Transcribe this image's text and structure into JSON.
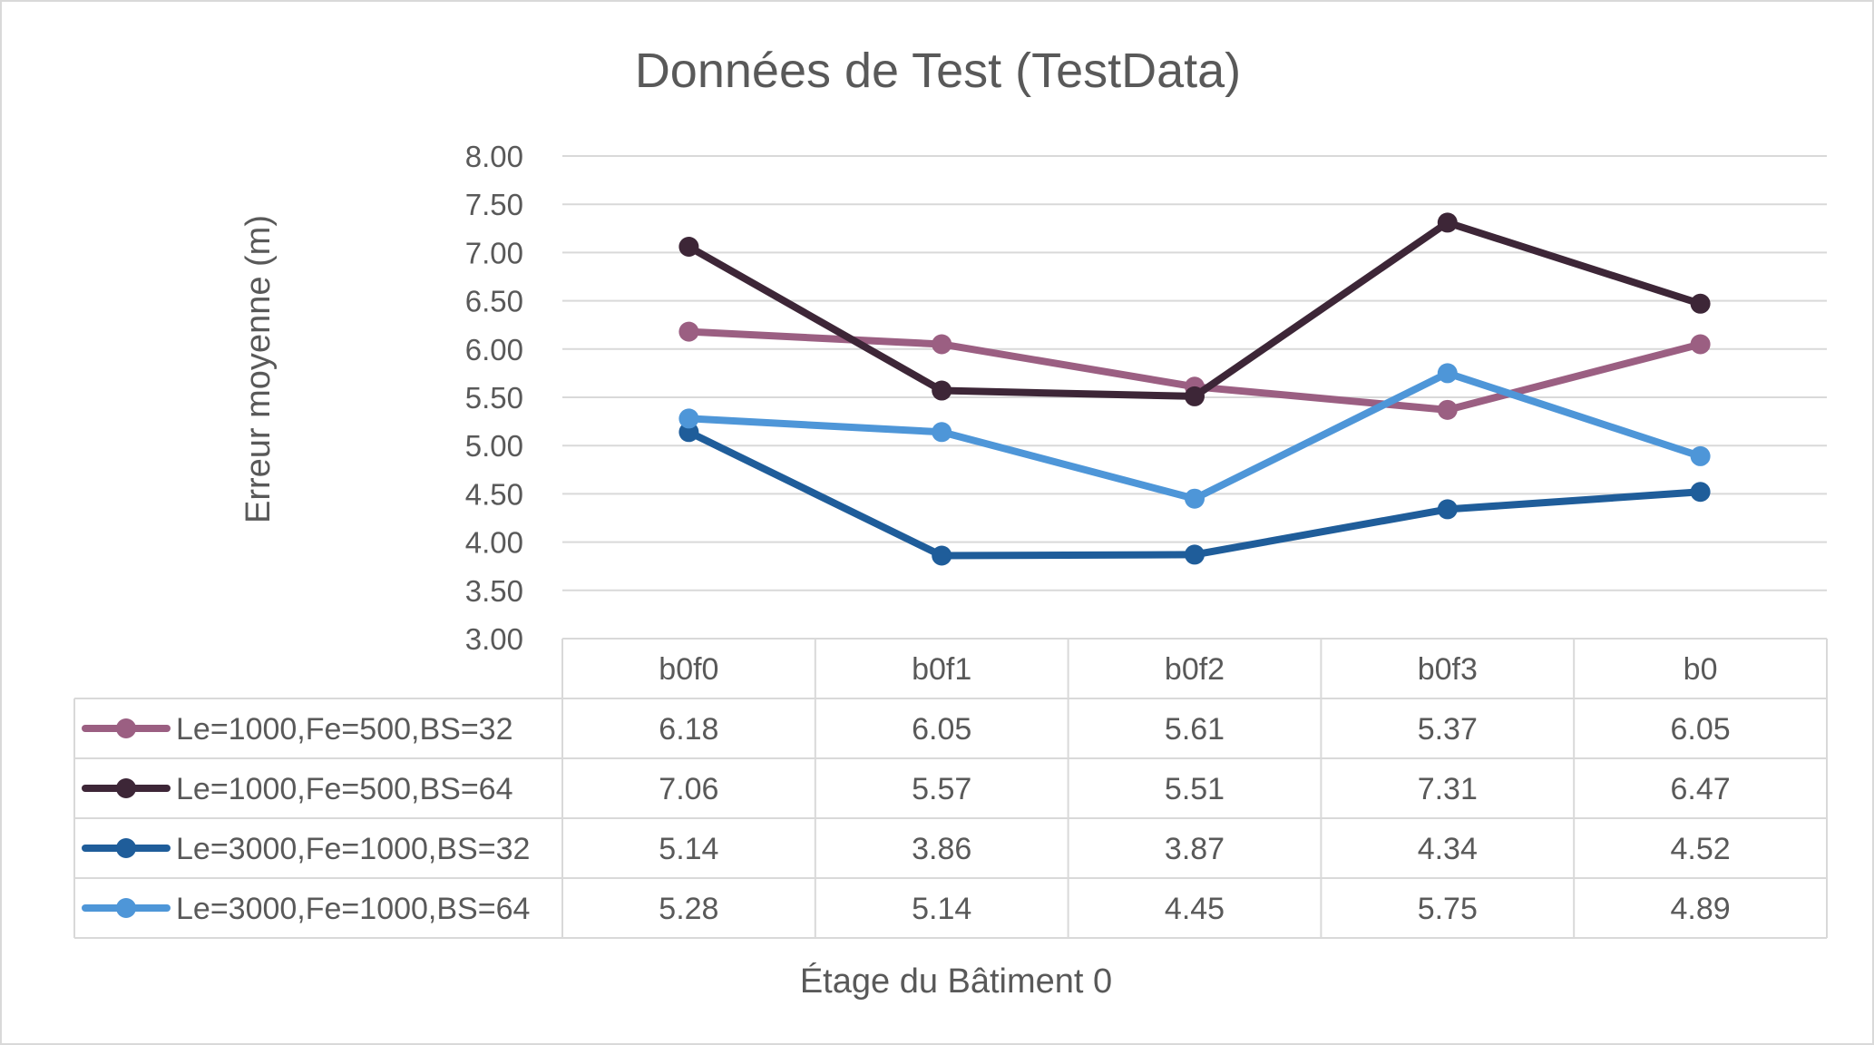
{
  "chart_data": {
    "type": "line",
    "title": "Données de Test (TestData)",
    "xlabel": "Étage du Bâtiment 0",
    "ylabel": "Erreur moyenne (m)",
    "categories": [
      "b0f0",
      "b0f1",
      "b0f2",
      "b0f3",
      "b0"
    ],
    "ylim": [
      3.0,
      8.0
    ],
    "yticks": [
      "8.00",
      "7.50",
      "7.00",
      "6.50",
      "6.00",
      "5.50",
      "5.00",
      "4.50",
      "4.00",
      "3.50",
      "3.00"
    ],
    "grid": true,
    "legend": "data-table",
    "series": [
      {
        "name": "Le=1000,Fe=500,BS=32",
        "color": "#9b5f82",
        "values": [
          6.18,
          6.05,
          5.61,
          5.37,
          6.05
        ],
        "labels": [
          "6.18",
          "6.05",
          "5.61",
          "5.37",
          "6.05"
        ]
      },
      {
        "name": "Le=1000,Fe=500,BS=64",
        "color": "#3d2637",
        "values": [
          7.06,
          5.57,
          5.51,
          7.31,
          6.47
        ],
        "labels": [
          "7.06",
          "5.57",
          "5.51",
          "7.31",
          "6.47"
        ]
      },
      {
        "name": "Le=3000,Fe=1000,BS=32",
        "color": "#1f5d9a",
        "values": [
          5.14,
          3.86,
          3.87,
          4.34,
          4.52
        ],
        "labels": [
          "5.14",
          "3.86",
          "3.87",
          "4.34",
          "4.52"
        ]
      },
      {
        "name": "Le=3000,Fe=1000,BS=64",
        "color": "#4e96d8",
        "values": [
          5.28,
          5.14,
          4.45,
          5.75,
          4.89
        ],
        "labels": [
          "5.28",
          "5.14",
          "4.45",
          "5.75",
          "4.89"
        ]
      }
    ]
  }
}
